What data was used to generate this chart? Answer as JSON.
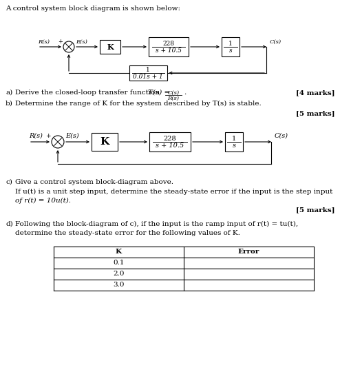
{
  "title": "A control system block diagram is shown below:",
  "bg_color": "#ffffff",
  "text_color": "#000000",
  "fig_width": 4.94,
  "fig_height": 5.46,
  "dpi": 100,
  "diagram1": {
    "Rs_label": "R(s)",
    "Es_label": "E(s)",
    "K_label": "K",
    "block1_num": "228",
    "block1_den": "s + 10.5",
    "block2_num": "1",
    "block2_den": "s",
    "Cs_label": "C(s)",
    "feedback_num": "1",
    "feedback_den": "0.01s + 1"
  },
  "diagram2": {
    "Rs_label": "R(s)",
    "Es_label": "E(s)",
    "K_label": "K",
    "block1_num": "228",
    "block1_den": "s + 10.5",
    "block2_num": "1",
    "block2_den": "s",
    "Cs_label": "C(s)"
  }
}
